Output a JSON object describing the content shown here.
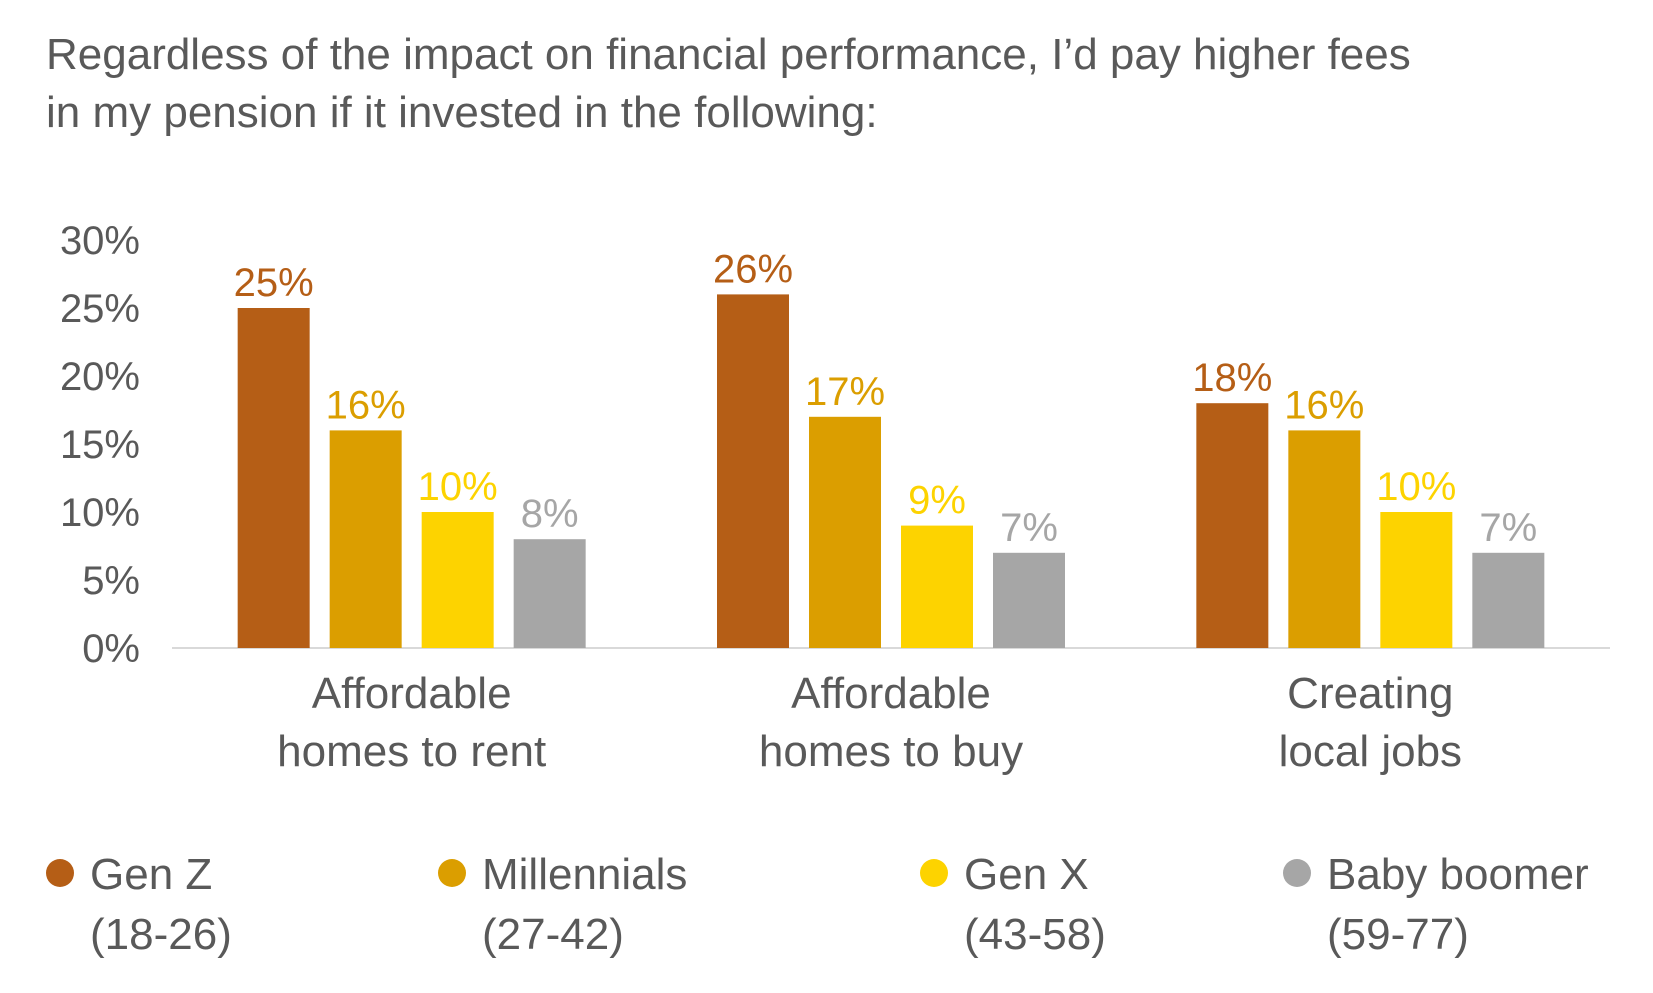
{
  "chart_data": {
    "type": "bar",
    "title_lines": [
      "Regardless of the impact on financial performance, I’d pay higher fees",
      "in my pension if it invested in the following:"
    ],
    "categories": [
      [
        "Affordable",
        "homes to rent"
      ],
      [
        "Affordable",
        "homes to buy"
      ],
      [
        "Creating",
        "local jobs"
      ]
    ],
    "series": [
      {
        "name": "Gen Z",
        "range": "(18-26)",
        "color": "#B55E16",
        "values": [
          25,
          26,
          18
        ]
      },
      {
        "name": "Millennials",
        "range": "(27-42)",
        "color": "#DB9E00",
        "values": [
          16,
          17,
          16
        ]
      },
      {
        "name": "Gen X",
        "range": "(43-58)",
        "color": "#FDD300",
        "values": [
          10,
          9,
          10
        ]
      },
      {
        "name": "Baby boomer",
        "range": "(59-77)",
        "color": "#A6A6A6",
        "values": [
          8,
          7,
          7
        ]
      }
    ],
    "yticks": [
      0,
      5,
      10,
      15,
      20,
      25,
      30
    ],
    "ylim": [
      0,
      30
    ],
    "value_suffix": "%",
    "legend_position": "bottom",
    "grid": false
  }
}
